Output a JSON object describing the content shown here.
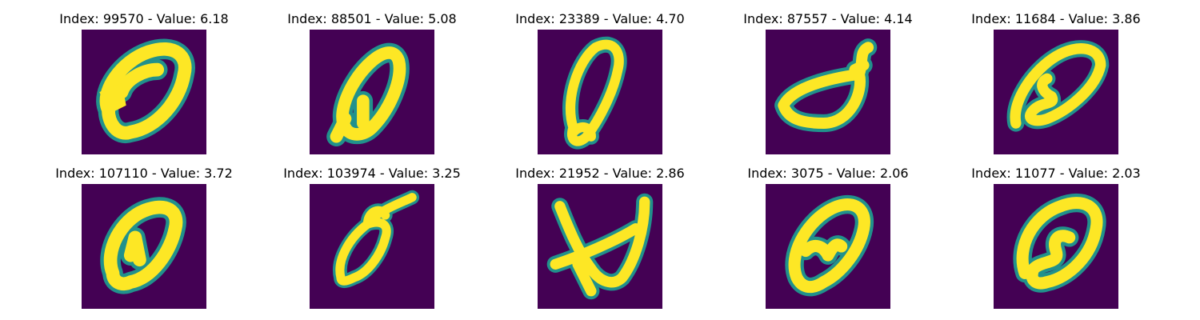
{
  "colors": {
    "background": "#440154",
    "edge": "#21918c",
    "foreground": "#fde725"
  },
  "panels": [
    {
      "title": "Index: 99570 - Value: 6.18",
      "glyph": "zero-thick-blob"
    },
    {
      "title": "Index: 88501 - Value: 5.08",
      "glyph": "zero-slanted-open"
    },
    {
      "title": "Index: 23389 - Value: 4.70",
      "glyph": "zero-narrow-loop"
    },
    {
      "title": "Index: 87557 - Value: 4.14",
      "glyph": "zero-flat-hook"
    },
    {
      "title": "Index: 11684 - Value: 3.86",
      "glyph": "zero-inner-loop"
    },
    {
      "title": "Index: 107110 - Value: 3.72",
      "glyph": "zero-round"
    },
    {
      "title": "Index: 103974 - Value: 3.25",
      "glyph": "zero-tail-top"
    },
    {
      "title": "Index: 21952 - Value: 2.86",
      "glyph": "zero-crossed"
    },
    {
      "title": "Index: 3075 - Value: 2.06",
      "glyph": "zero-heart"
    },
    {
      "title": "Index: 11077 - Value: 2.03",
      "glyph": "zero-curl"
    }
  ]
}
